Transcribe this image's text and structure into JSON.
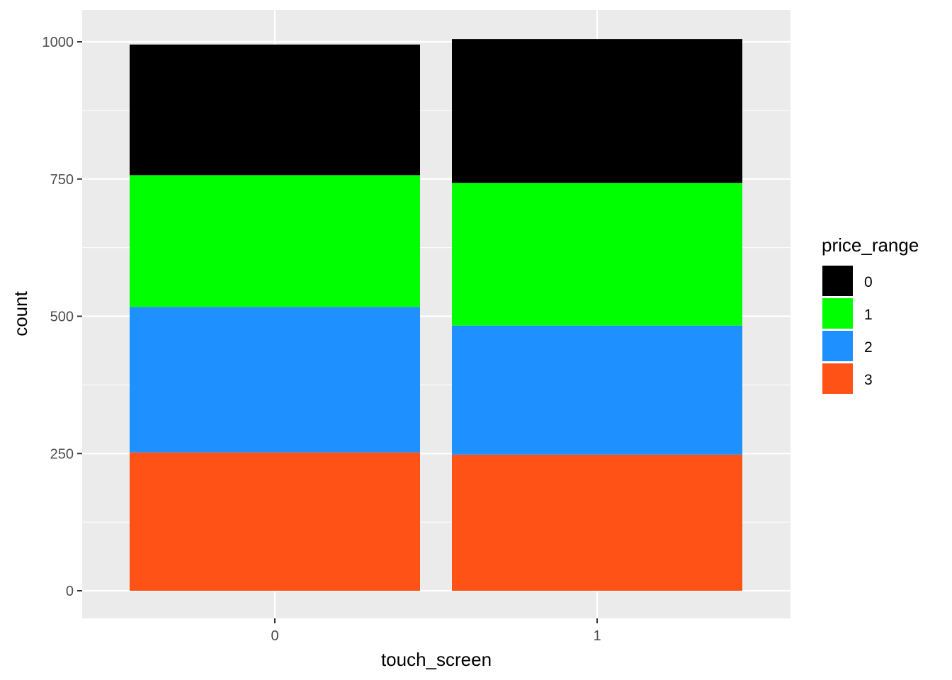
{
  "chart_data": {
    "type": "bar",
    "stacked": true,
    "xlabel": "touch_screen",
    "ylabel": "count",
    "categories": [
      "0",
      "1"
    ],
    "ylim": [
      0,
      1055
    ],
    "yticks": [
      0,
      250,
      500,
      750,
      1000
    ],
    "grid": true,
    "legend": {
      "title": "price_range",
      "position": "right"
    },
    "series": [
      {
        "name": "3",
        "color": "#FF5216",
        "values": [
          252,
          248
        ]
      },
      {
        "name": "2",
        "color": "#1E90FF",
        "values": [
          265,
          235
        ]
      },
      {
        "name": "1",
        "color": "#00FF00",
        "values": [
          240,
          260
        ]
      },
      {
        "name": "0",
        "color": "#000000",
        "values": [
          238,
          262
        ]
      }
    ],
    "legend_order": [
      "0",
      "1",
      "2",
      "3"
    ],
    "panel_background": "#EBEBEB",
    "grid_color": "#FFFFFF"
  }
}
